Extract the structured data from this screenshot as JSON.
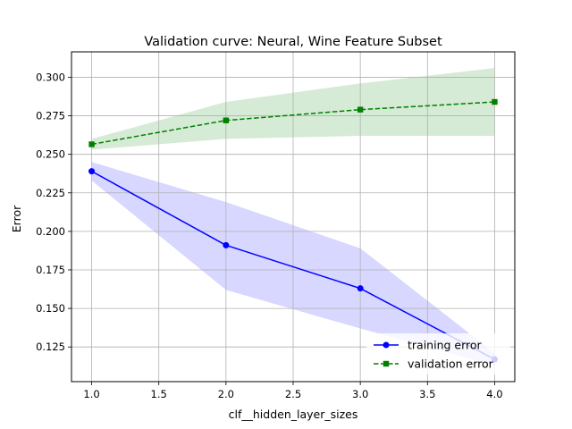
{
  "chart_data": {
    "type": "line",
    "title": "Validation curve: Neural, Wine Feature Subset",
    "xlabel": "clf__hidden_layer_sizes",
    "ylabel": "Error",
    "xlim": [
      0.85,
      4.15
    ],
    "ylim": [
      0.1025,
      0.3165
    ],
    "x_ticks": [
      1.0,
      1.5,
      2.0,
      2.5,
      3.0,
      3.5,
      4.0
    ],
    "x_tick_labels": [
      "1.0",
      "1.5",
      "2.0",
      "2.5",
      "3.0",
      "3.5",
      "4.0"
    ],
    "y_ticks": [
      0.125,
      0.15,
      0.175,
      0.2,
      0.225,
      0.25,
      0.275,
      0.3
    ],
    "y_tick_labels": [
      "0.125",
      "0.150",
      "0.175",
      "0.200",
      "0.225",
      "0.250",
      "0.275",
      "0.300"
    ],
    "grid": true,
    "legend_position": "lower-right",
    "x": [
      1.0,
      2.0,
      3.0,
      4.0
    ],
    "series": [
      {
        "name": "training error",
        "values": [
          0.239,
          0.191,
          0.163,
          0.117
        ],
        "band_upper": [
          0.245,
          0.219,
          0.189,
          0.121
        ],
        "band_lower": [
          0.233,
          0.162,
          0.137,
          0.113
        ],
        "color": "#0000ff",
        "band_color": "#d7d7ff",
        "line_style": "solid",
        "marker": "circle"
      },
      {
        "name": "validation error",
        "values": [
          0.2565,
          0.272,
          0.279,
          0.284
        ],
        "band_upper": [
          0.26,
          0.284,
          0.296,
          0.306
        ],
        "band_lower": [
          0.253,
          0.26,
          0.262,
          0.262
        ],
        "color": "#008000",
        "band_color": "#d5ebd5",
        "line_style": "dashed",
        "marker": "square"
      }
    ]
  }
}
